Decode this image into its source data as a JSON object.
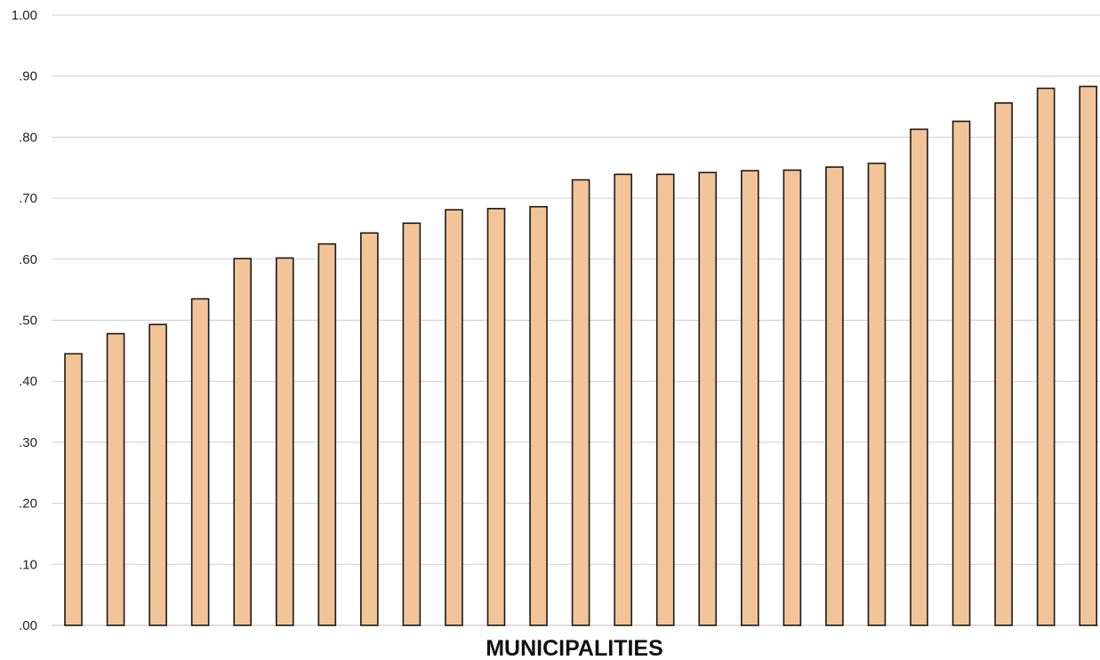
{
  "chart_data": {
    "type": "bar",
    "title": "",
    "xlabel": "MUNICIPALITIES",
    "ylabel": "",
    "ylim": [
      0,
      1
    ],
    "grid": true,
    "yticks": [
      {
        "value": 0.0,
        "label": ".00"
      },
      {
        "value": 0.1,
        "label": ".10"
      },
      {
        "value": 0.2,
        "label": ".20"
      },
      {
        "value": 0.3,
        "label": ".30"
      },
      {
        "value": 0.4,
        "label": ".40"
      },
      {
        "value": 0.5,
        "label": ".50"
      },
      {
        "value": 0.6,
        "label": ".60"
      },
      {
        "value": 0.7,
        "label": ".70"
      },
      {
        "value": 0.8,
        "label": ".80"
      },
      {
        "value": 0.9,
        "label": ".90"
      },
      {
        "value": 1.0,
        "label": "1.00"
      }
    ],
    "values": [
      0.445,
      0.478,
      0.493,
      0.535,
      0.601,
      0.602,
      0.625,
      0.643,
      0.659,
      0.681,
      0.683,
      0.686,
      0.73,
      0.739,
      0.739,
      0.742,
      0.745,
      0.746,
      0.751,
      0.757,
      0.813,
      0.826,
      0.856,
      0.88,
      0.883
    ],
    "colors": {
      "bar_fill": "#f2c498",
      "bar_edge": "#1a1a1a"
    }
  }
}
